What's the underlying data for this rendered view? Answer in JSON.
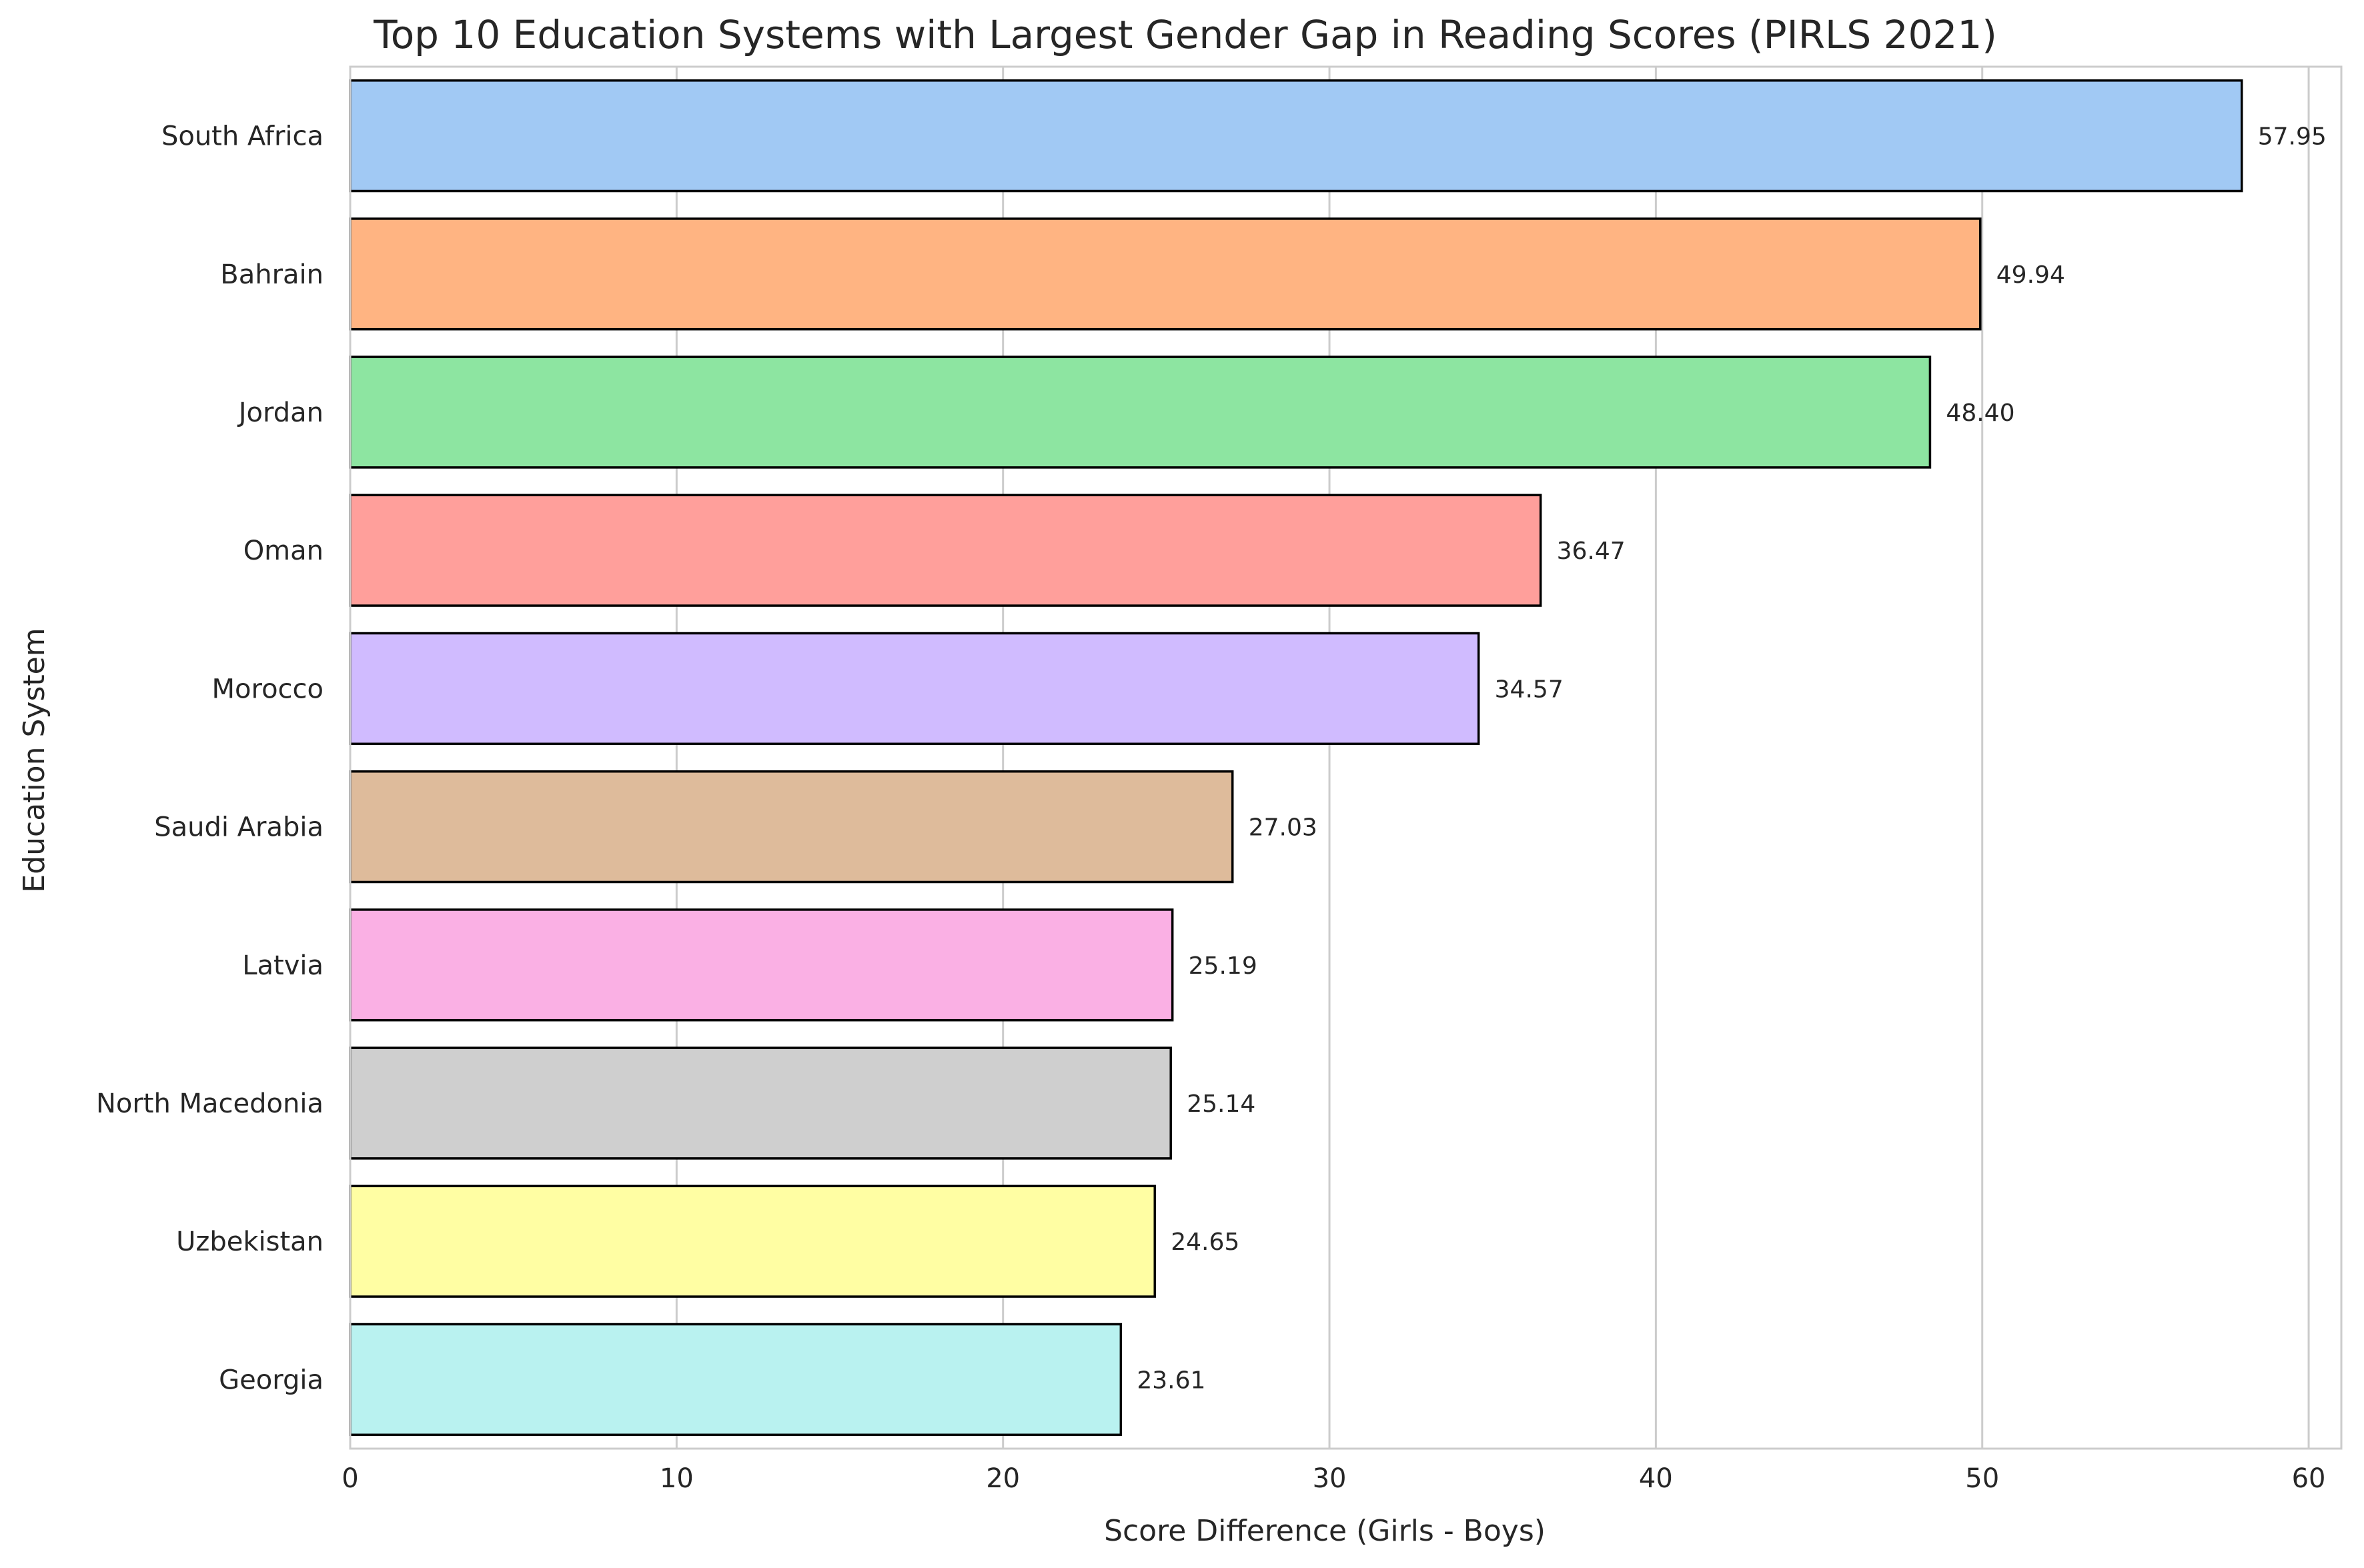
{
  "chart_data": {
    "type": "bar",
    "orientation": "horizontal",
    "title": "Top 10 Education Systems with Largest Gender Gap in Reading Scores (PIRLS 2021)",
    "xlabel": "Score Difference (Girls - Boys)",
    "ylabel": "Education System",
    "xlim": [
      0,
      61
    ],
    "xticks": [
      0,
      10,
      20,
      30,
      40,
      50,
      60
    ],
    "grid": "x",
    "categories": [
      "South Africa",
      "Bahrain",
      "Jordan",
      "Oman",
      "Morocco",
      "Saudi Arabia",
      "Latvia",
      "North Macedonia",
      "Uzbekistan",
      "Georgia"
    ],
    "values": [
      57.95,
      49.94,
      48.4,
      36.47,
      34.57,
      27.03,
      25.19,
      25.14,
      24.65,
      23.61
    ],
    "value_labels": [
      "57.95",
      "49.94",
      "48.40",
      "36.47",
      "34.57",
      "27.03",
      "25.19",
      "25.14",
      "24.65",
      "23.61"
    ],
    "colors": [
      "#a1c9f4",
      "#ffb482",
      "#8de5a1",
      "#ff9f9b",
      "#d0bbff",
      "#debb9b",
      "#fab0e4",
      "#cfcfcf",
      "#fffea3",
      "#b9f2f0"
    ]
  }
}
